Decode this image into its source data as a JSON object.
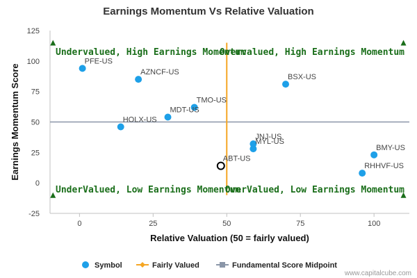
{
  "chart_data": {
    "type": "scatter",
    "title": "Earnings Momentum Vs Relative Valuation",
    "xlabel": "Relative Valuation (50 = fairly valued)",
    "ylabel": "Earnings Momentum Score",
    "xlim": [
      -10,
      112
    ],
    "ylim": [
      -25,
      125
    ],
    "xticks": [
      0,
      25,
      50,
      75,
      100
    ],
    "yticks": [
      125,
      100,
      75,
      50,
      25,
      0,
      -25
    ],
    "grid": false,
    "fairly_valued_x": 50,
    "midpoint_y": 50,
    "series": [
      {
        "name": "Symbol",
        "color": "#1ea0e8",
        "points": [
          {
            "label": "PFE-US",
            "x": 1,
            "y": 94
          },
          {
            "label": "AZNCF-US",
            "x": 20,
            "y": 85
          },
          {
            "label": "BSX-US",
            "x": 70,
            "y": 81
          },
          {
            "label": "TMO-US",
            "x": 39,
            "y": 62
          },
          {
            "label": "MDT-US",
            "x": 30,
            "y": 54
          },
          {
            "label": "HOLX-US",
            "x": 14,
            "y": 46
          },
          {
            "label": "JNJ-US",
            "x": 59,
            "y": 32
          },
          {
            "label": "MYL-US",
            "x": 59,
            "y": 28
          },
          {
            "label": "BMY-US",
            "x": 100,
            "y": 23
          },
          {
            "label": "RHHVF-US",
            "x": 96,
            "y": 8
          }
        ]
      },
      {
        "name": "Fairly Valued",
        "color": "#f5a623"
      },
      {
        "name": "Fundamental Score Midpoint",
        "color": "#8a96a8"
      }
    ],
    "highlight": {
      "label": "ABT-US",
      "x": 48,
      "y": 14,
      "color": "#000000"
    },
    "quadrants": {
      "top_left": "Undervalued, High Earnings Momentum",
      "top_right": "Overvalued, High Earnings Momentum",
      "bottom_left": "UnderValued, Low Earnings Momentum",
      "bottom_right": "OverValued, Low Earnings Momentum"
    },
    "legend_position": "bottom-center",
    "marker_color": "#1a6e1a",
    "credit": "www.capitalcube.com"
  }
}
